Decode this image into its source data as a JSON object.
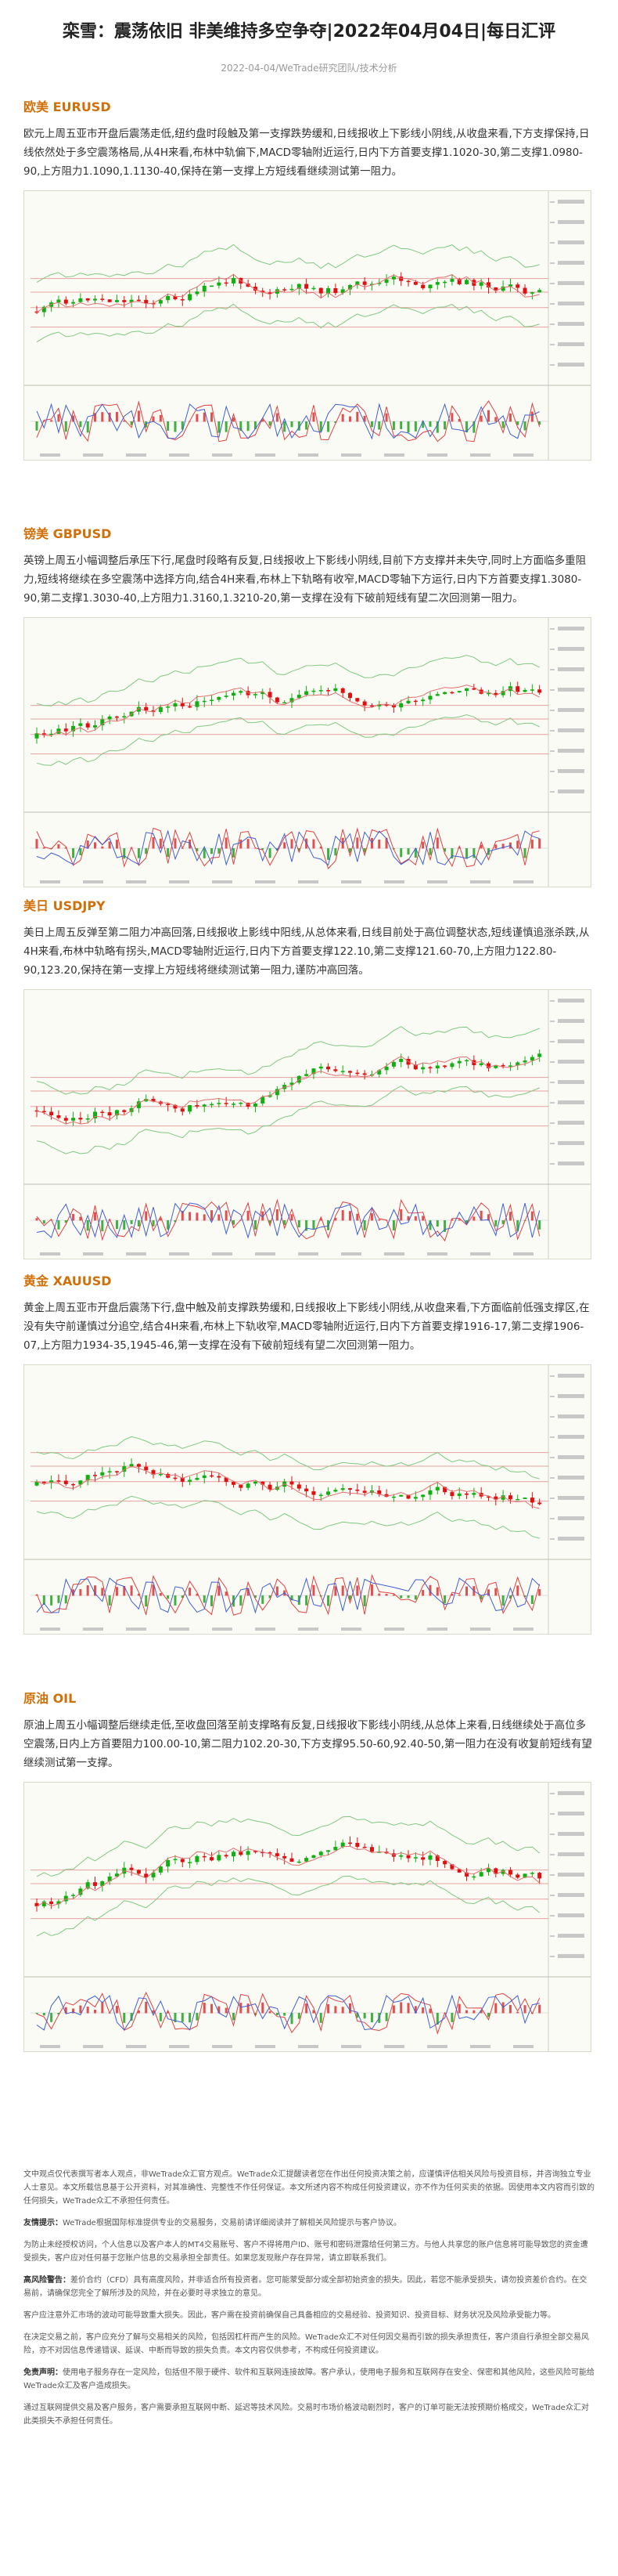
{
  "header": {
    "title": "栾雪：震荡依旧 非美维持多空争夺|2022年04月04日|每日汇评",
    "meta": "2022-04-04/WeTrade研究团队/技术分析"
  },
  "sections": [
    {
      "heading": "欧美 EURUSD",
      "text": "欧元上周五亚市开盘后震荡走低,纽约盘时段触及第一支撑跌势缓和,日线报收上下影线小阴线,从收盘来看,下方支撑保持,日线依然处于多空震荡格局,从4H来看,布林中轨偏下,MACD零轴附近运行,日内下方首要支撑1.1020-30,第二支撑1.0980-90,上方阻力1.1090,1.1130-40,保持在第一支撑上方短线看继续测试第一阻力。"
    },
    {
      "heading": "镑美 GBPUSD",
      "text": "英镑上周五小幅调整后承压下行,尾盘时段略有反复,日线报收上下影线小阴线,目前下方支撑并未失守,同时上方面临多重阻力,短线将继续在多空震荡中选择方向,结合4H来看,布林上下轨略有收窄,MACD零轴下方运行,日内下方首要支撑1.3080-90,第二支撑1.3030-40,上方阻力1.3160,1.3210-20,第一支撑在没有下破前短线有望二次回测第一阻力。"
    },
    {
      "heading": "美日 USDJPY",
      "text": "美日上周五反弹至第二阻力冲高回落,日线报收上影线中阳线,从总体来看,日线目前处于高位调整状态,短线谨慎追涨杀跌,从4H来看,布林中轨略有拐头,MACD零轴附近运行,日内下方首要支撑122.10,第二支撑121.60-70,上方阻力122.80-90,123.20,保持在第一支撑上方短线将继续测试第一阻力,谨防冲高回落。"
    },
    {
      "heading": "黄金 XAUUSD",
      "text": "黄金上周五亚市开盘后震荡下行,盘中触及前支撑跌势缓和,日线报收上下影线小阴线,从收盘来看,下方面临前低强支撑区,在没有失守前谨慎过分追空,结合4H来看,布林上下轨收窄,MACD零轴附近运行,日内下方首要支撑1916-17,第二支撑1906-07,上方阻力1934-35,1945-46,第一支撑在没有下破前短线有望二次回测第一阻力。"
    },
    {
      "heading": "原油 OIL",
      "text": "原油上周五小幅调整后继续走低,至收盘回落至前支撑略有反复,日线报收下影线小阴线,从总体上来看,日线继续处于高位多空震荡,日内上方首要阻力100.00-10,第二阻力102.20-30,下方支撑95.50-60,92.40-50,第一阻力在没有收复前短线有望继续测试第一支撑。"
    }
  ],
  "disclaimer": {
    "p1": "文中观点仅代表撰写者本人观点，非WeTrade众汇官方观点。WeTrade众汇提醒读者您在作出任何投资决策之前，应谨慎评估相关风险与投资目标，并咨询独立专业人士意见。本文所载信息基于公开资料，对其准确性、完整性不作任何保证。本文所述内容不构成任何投资建议，亦不作为任何买卖的依据。因使用本文内容而引致的任何损失，WeTrade众汇不承担任何责任。",
    "label2": "友情提示：",
    "p2": "WeTrade根据国际标准提供专业的交易服务，交易前请详细阅读并了解相关风险提示与客户协议。",
    "p3": "为防止未经授权访问，个人信息以及客户本人的MT4交易账号、客户不得将用户ID、账号和密码泄露给任何第三方。与他人共享您的账户信息将可能导致您的资金遭受损失，客户应对任何基于您账户信息的交易承担全部责任。如果您发现账户存在异常，请立即联系我们。",
    "label4": "高风险警告：",
    "p4": "差价合约（CFD）具有高度风险，并非适合所有投资者。您可能蒙受部分或全部初始资金的损失。因此，若您不能承受损失，请勿投资差价合约。在交易前，请确保您完全了解所涉及的风险，并在必要时寻求独立的意见。",
    "p5": "客户应注意外汇市场的波动可能导致重大损失。因此，客户需在投资前确保自己具备相应的交易经验、投资知识、投资目标、财务状况及风险承受能力等。",
    "p6": "在决定交易之前，客户应充分了解与交易相关的风险，包括因杠杆而产生的风险。WeTrade众汇不对任何因交易而引致的损失承担责任，客户须自行承担全部交易风险，亦不对因信息传递错误、延误、中断而导致的损失负责。本文内容仅供参考，不构成任何投资建议。",
    "label7": "免责声明：",
    "p7": "使用电子服务存在一定风险，包括但不限于硬件、软件和互联网连接故障。客户承认，使用电子服务和互联网存在安全、保密和其他风险，这些风险可能给WeTrade众汇及客户造成损失。",
    "p8": "通过互联网提供交易及客户服务，客户需要承担互联网中断、延迟等技术风险。交易时市场价格波动剧烈时，客户的订单可能无法按预期价格成交，WeTrade众汇对此类损失不承担任何责任。"
  }
}
